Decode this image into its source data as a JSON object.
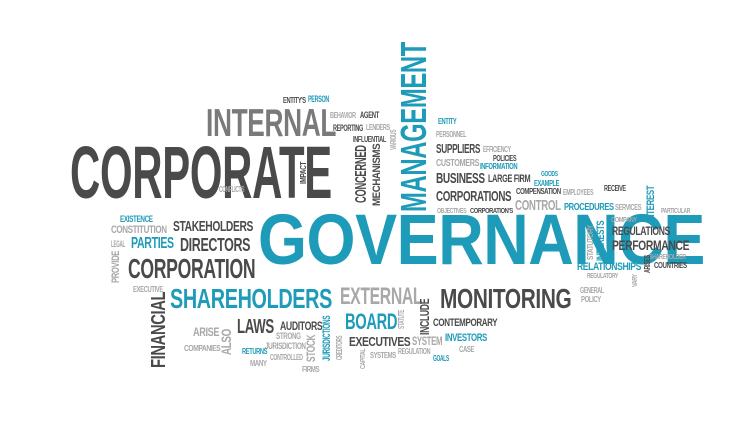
{
  "colors": {
    "dark": "#4a4a4a",
    "mid": "#7a7a7a",
    "light": "#a8a8a8",
    "teal": "#1e9bb8",
    "background": "#ffffff"
  },
  "words": [
    {
      "id": "w0",
      "text": "GOVERNANCE",
      "color": "teal"
    },
    {
      "id": "w1",
      "text": "CORPORATE",
      "color": "dark"
    },
    {
      "id": "w2",
      "text": "INTERNAL",
      "color": "mid"
    },
    {
      "id": "w3",
      "text": "MANAGEMENT",
      "color": "teal"
    },
    {
      "id": "w4",
      "text": "CORPORATION",
      "color": "dark"
    },
    {
      "id": "w5",
      "text": "SHAREHOLDERS",
      "color": "teal"
    },
    {
      "id": "w6",
      "text": "EXTERNAL",
      "color": "light"
    },
    {
      "id": "w7",
      "text": "MONITORING",
      "color": "dark"
    },
    {
      "id": "w8",
      "text": "BOARD",
      "color": "teal"
    },
    {
      "id": "w9",
      "text": "FINANCIAL",
      "color": "dark"
    },
    {
      "id": "w10",
      "text": "DIRECTORS",
      "color": "dark"
    },
    {
      "id": "w11",
      "text": "STAKEHOLDERS",
      "color": "dark"
    },
    {
      "id": "w12",
      "text": "PARTIES",
      "color": "teal"
    },
    {
      "id": "w13",
      "text": "CONSTITUTION",
      "color": "light"
    },
    {
      "id": "w14",
      "text": "EXISTENCE",
      "color": "teal"
    },
    {
      "id": "w15",
      "text": "LEGAL",
      "color": "light"
    },
    {
      "id": "w16",
      "text": "PROVIDE",
      "color": "light"
    },
    {
      "id": "w17",
      "text": "EXECUTIVE",
      "color": "light"
    },
    {
      "id": "w18",
      "text": "LAWS",
      "color": "dark"
    },
    {
      "id": "w19",
      "text": "ARISE",
      "color": "light"
    },
    {
      "id": "w20",
      "text": "ALSO",
      "color": "light"
    },
    {
      "id": "w21",
      "text": "COMPANIES",
      "color": "light"
    },
    {
      "id": "w22",
      "text": "AUDITORS",
      "color": "dark"
    },
    {
      "id": "w23",
      "text": "STRONG",
      "color": "light"
    },
    {
      "id": "w24",
      "text": "JURISDICTION",
      "color": "light"
    },
    {
      "id": "w25",
      "text": "RETURNS",
      "color": "teal"
    },
    {
      "id": "w26",
      "text": "CONTROLLED",
      "color": "light"
    },
    {
      "id": "w27",
      "text": "MANY",
      "color": "light"
    },
    {
      "id": "w28",
      "text": "FIRMS",
      "color": "light"
    },
    {
      "id": "w29",
      "text": "STOCK",
      "color": "light"
    },
    {
      "id": "w30",
      "text": "JURISDICTIONS",
      "color": "teal"
    },
    {
      "id": "w31",
      "text": "CREDITORS",
      "color": "light"
    },
    {
      "id": "w32",
      "text": "CONCERNED",
      "color": "dark"
    },
    {
      "id": "w33",
      "text": "MECHANISMS",
      "color": "dark"
    },
    {
      "id": "w34",
      "text": "ENTITY'S",
      "color": "dark"
    },
    {
      "id": "w35",
      "text": "PERSON",
      "color": "teal"
    },
    {
      "id": "w36",
      "text": "BEHAVIOR",
      "color": "light"
    },
    {
      "id": "w37",
      "text": "AGENT",
      "color": "dark"
    },
    {
      "id": "w38",
      "text": "REPORTING",
      "color": "dark"
    },
    {
      "id": "w39",
      "text": "LENDERS",
      "color": "light"
    },
    {
      "id": "w40",
      "text": "INFLUENTIAL",
      "color": "dark"
    },
    {
      "id": "w41",
      "text": "VARIOUS",
      "color": "light"
    },
    {
      "id": "w42",
      "text": "IMPACT",
      "color": "dark"
    },
    {
      "id": "w43",
      "text": "CONFLICTS",
      "color": "light"
    },
    {
      "id": "w44",
      "text": "ENTITY",
      "color": "teal"
    },
    {
      "id": "w45",
      "text": "PERSONNEL",
      "color": "light"
    },
    {
      "id": "w46",
      "text": "SUPPLIERS",
      "color": "dark"
    },
    {
      "id": "w47",
      "text": "EFFICIENCY",
      "color": "light"
    },
    {
      "id": "w48",
      "text": "POLICIES",
      "color": "dark"
    },
    {
      "id": "w49",
      "text": "CUSTOMERS",
      "color": "light"
    },
    {
      "id": "w50",
      "text": "INFORMATION",
      "color": "teal"
    },
    {
      "id": "w51",
      "text": "BUSINESS",
      "color": "dark"
    },
    {
      "id": "w52",
      "text": "LARGE FIRM",
      "color": "dark"
    },
    {
      "id": "w53",
      "text": "GOODS",
      "color": "teal"
    },
    {
      "id": "w54",
      "text": "EXAMPLE",
      "color": "teal"
    },
    {
      "id": "w55",
      "text": "CORPORATIONS",
      "color": "dark"
    },
    {
      "id": "w56",
      "text": "COMPENSATION",
      "color": "dark"
    },
    {
      "id": "w57",
      "text": "EMPLOYEES",
      "color": "light"
    },
    {
      "id": "w58",
      "text": "RECEIVE",
      "color": "dark"
    },
    {
      "id": "w59",
      "text": "OBJECTIVES",
      "color": "light"
    },
    {
      "id": "w60",
      "text": "CORPORATION'S",
      "color": "dark"
    },
    {
      "id": "w61",
      "text": "CONTROL",
      "color": "light"
    },
    {
      "id": "w62",
      "text": "PROCEDURES",
      "color": "teal"
    },
    {
      "id": "w63",
      "text": "SERVICES",
      "color": "light"
    },
    {
      "id": "w64",
      "text": "INTEREST",
      "color": "teal"
    },
    {
      "id": "w65",
      "text": "PARTICULAR",
      "color": "light"
    },
    {
      "id": "w66",
      "text": "COMPANY",
      "color": "light"
    },
    {
      "id": "w67",
      "text": "REGULATIONS",
      "color": "dark"
    },
    {
      "id": "w68",
      "text": "STATUTORY",
      "color": "light"
    },
    {
      "id": "w69",
      "text": "INTERESTS",
      "color": "teal"
    },
    {
      "id": "w70",
      "text": "PERFORMANCE",
      "color": "dark"
    },
    {
      "id": "w71",
      "text": "SHAREHOLDER",
      "color": "light"
    },
    {
      "id": "w72",
      "text": "COUNTRIES",
      "color": "dark"
    },
    {
      "id": "w73",
      "text": "ARISES",
      "color": "dark"
    },
    {
      "id": "w74",
      "text": "RELATIONSHIPS",
      "color": "teal"
    },
    {
      "id": "w75",
      "text": "REGULATORY",
      "color": "light"
    },
    {
      "id": "w76",
      "text": "VARY",
      "color": "light"
    },
    {
      "id": "w77",
      "text": "GENERAL",
      "color": "light"
    },
    {
      "id": "w78",
      "text": "POLICY",
      "color": "light"
    },
    {
      "id": "w79",
      "text": "INCLUDE",
      "color": "dark"
    },
    {
      "id": "w80",
      "text": "STATUTE",
      "color": "light"
    },
    {
      "id": "w81",
      "text": "CONTEMPORARY",
      "color": "dark"
    },
    {
      "id": "w82",
      "text": "EXECUTIVES",
      "color": "dark"
    },
    {
      "id": "w83",
      "text": "SYSTEM",
      "color": "light"
    },
    {
      "id": "w84",
      "text": "INVESTORS",
      "color": "teal"
    },
    {
      "id": "w85",
      "text": "CASE",
      "color": "light"
    },
    {
      "id": "w86",
      "text": "CAPITAL",
      "color": "light"
    },
    {
      "id": "w87",
      "text": "SYSTEMS",
      "color": "light"
    },
    {
      "id": "w88",
      "text": "REGULATION",
      "color": "light"
    },
    {
      "id": "w89",
      "text": "GOALS",
      "color": "teal"
    }
  ]
}
